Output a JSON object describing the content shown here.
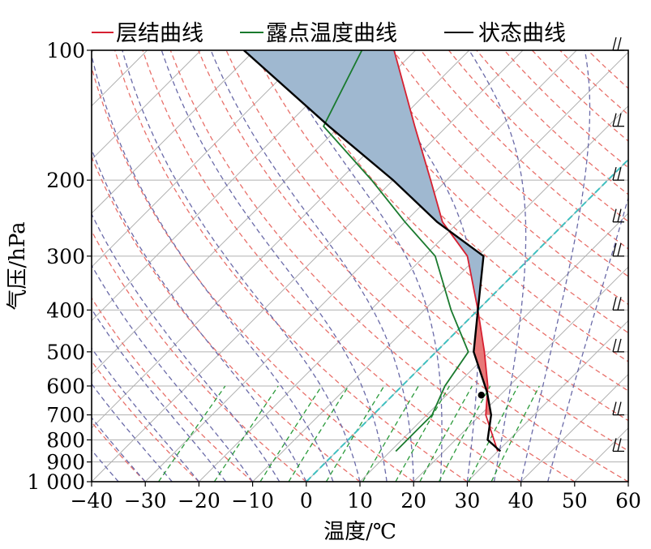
{
  "chart_data": {
    "type": "line",
    "subtype": "skew-T log-P diagram",
    "xlabel": "温度/℃",
    "ylabel": "气压/hPa",
    "xlim": [
      -40,
      60
    ],
    "ylim": [
      1000,
      100
    ],
    "y_scale": "log",
    "x_ticks": [
      -40,
      -30,
      -20,
      -10,
      0,
      10,
      20,
      30,
      40,
      50,
      60
    ],
    "x_tick_labels": [
      "−40",
      "−30",
      "−20",
      "−10",
      "0",
      "10",
      "20",
      "30",
      "40",
      "50",
      "60"
    ],
    "y_ticks": [
      100,
      200,
      300,
      400,
      500,
      600,
      700,
      800,
      900,
      1000
    ],
    "y_tick_labels": [
      "100",
      "200",
      "300",
      "400",
      "500",
      "600",
      "700",
      "800",
      "900",
      "1 000"
    ],
    "legend": {
      "placement": "top",
      "entries": [
        {
          "label": "层结曲线",
          "color": "#d62031"
        },
        {
          "label": "露点温度曲线",
          "color": "#1a7a2e"
        },
        {
          "label": "状态曲线",
          "color": "#000000"
        }
      ]
    },
    "series": [
      {
        "name": "层结曲线",
        "color": "#d62031",
        "points": [
          [
            30,
            850
          ],
          [
            21,
            700
          ],
          [
            16,
            600
          ],
          [
            9,
            500
          ],
          [
            0,
            400
          ],
          [
            -12,
            300
          ],
          [
            -23,
            250
          ],
          [
            -33,
            200
          ],
          [
            -46,
            150
          ],
          [
            -64,
            100
          ]
        ]
      },
      {
        "name": "露点温度曲线",
        "color": "#1a7a2e",
        "points": [
          [
            11,
            850
          ],
          [
            11,
            700
          ],
          [
            8,
            600
          ],
          [
            6,
            500
          ],
          [
            -5,
            400
          ],
          [
            -18,
            300
          ],
          [
            -30,
            250
          ],
          [
            -44,
            200
          ],
          [
            -63,
            150
          ],
          [
            -70,
            100
          ]
        ]
      },
      {
        "name": "状态曲线",
        "color": "#000000",
        "points": [
          [
            30.5,
            850
          ],
          [
            26,
            800
          ],
          [
            22,
            700
          ],
          [
            17,
            620
          ],
          [
            7,
            500
          ],
          [
            0,
            400
          ],
          [
            -9,
            300
          ],
          [
            -24,
            250
          ],
          [
            -40,
            200
          ],
          [
            -62,
            150
          ],
          [
            -92,
            100
          ]
        ]
      }
    ],
    "cape_shading": {
      "color": "#9fb8d0",
      "pressure_range": [
        400,
        100
      ]
    },
    "cin_shading": {
      "color": "#e87878",
      "pressure_range": [
        700,
        400
      ]
    },
    "lcl_point": {
      "temperature": 16.5,
      "pressure": 630
    },
    "isotherms": {
      "color": "#b0b0b0"
    },
    "dry_adiabats": {
      "color": "#e8706a",
      "style": "dashed"
    },
    "moist_adiabats": {
      "color": "#6a6aa8",
      "style": "dashed"
    },
    "mixing_ratio_lines": {
      "color": "#2a9a3a",
      "style": "dashed",
      "pressure_range": [
        1000,
        600
      ]
    },
    "highlight_line": {
      "color": "#40c0c0",
      "style": "dashed"
    },
    "wind_barbs": {
      "position": "right",
      "levels": [
        850,
        700,
        500,
        400,
        300,
        250,
        200,
        150,
        100
      ]
    },
    "grid": true
  }
}
